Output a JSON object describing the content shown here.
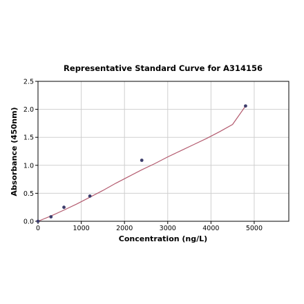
{
  "chart_data": {
    "type": "scatter",
    "title": "Representative Standard Curve for A314156",
    "xlabel": "Concentration (ng/L)",
    "ylabel": "Absorbance (450nm)",
    "xlim": [
      0,
      5800
    ],
    "ylim": [
      0,
      2.5
    ],
    "x_ticks": [
      0,
      1000,
      2000,
      3000,
      4000,
      5000
    ],
    "y_ticks": [
      0.0,
      0.5,
      1.0,
      1.5,
      2.0,
      2.5
    ],
    "x_tick_labels": [
      "0",
      "1000",
      "2000",
      "3000",
      "4000",
      "5000"
    ],
    "y_tick_labels": [
      "0.0",
      "0.5",
      "1.0",
      "1.5",
      "2.0",
      "2.5"
    ],
    "grid": true,
    "series": [
      {
        "type": "scatter",
        "x": [
          0,
          300,
          600,
          1200,
          2400,
          4800
        ],
        "y": [
          0.0,
          0.08,
          0.25,
          0.45,
          1.09,
          2.06
        ],
        "color": "#3d3d6b"
      },
      {
        "type": "line",
        "x": [
          0,
          300,
          600,
          900,
          1200,
          1500,
          1800,
          2100,
          2400,
          2700,
          3000,
          3300,
          3600,
          3900,
          4200,
          4500,
          4800
        ],
        "y": [
          0.0,
          0.095,
          0.2,
          0.31,
          0.43,
          0.55,
          0.68,
          0.8,
          0.92,
          1.03,
          1.15,
          1.26,
          1.37,
          1.48,
          1.6,
          1.73,
          2.06
        ],
        "color": "#b35a6e"
      }
    ]
  }
}
